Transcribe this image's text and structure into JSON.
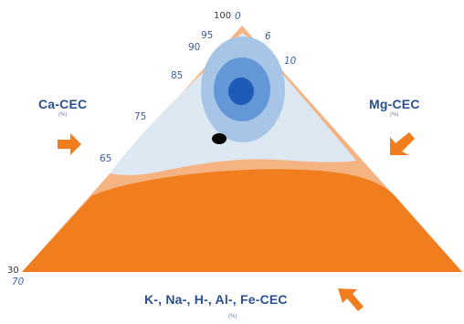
{
  "axes": {
    "ca": {
      "title": "Ca-CEC",
      "unit": "(%)"
    },
    "mg": {
      "title": "Mg-CEC",
      "unit": "(%)"
    },
    "other": {
      "title": "K-, Na-, H-, Al-, Fe-CEC",
      "unit": "(%)"
    }
  },
  "ca_ticks": [
    "100",
    "95",
    "90",
    "85",
    "75",
    "65",
    "30"
  ],
  "mg_ticks": [
    "0",
    "6",
    "10"
  ],
  "other_ticks": [
    "70"
  ],
  "colors": {
    "bottom_region": "#f07d1e",
    "middle_band": "#f5b382",
    "light_region": "#dde8f3",
    "zone_outer": "#a7c6e7",
    "zone_inner": "#6397d7",
    "zone_core": "#1c5bb7",
    "sample_point": "#000000",
    "arrow": "#f07d1e",
    "title_text": "#2a4f8f"
  },
  "icons": {
    "ca_arrow": "arrow-right-icon",
    "mg_arrow": "arrow-down-left-icon",
    "other_arrow": "arrow-up-left-icon"
  }
}
